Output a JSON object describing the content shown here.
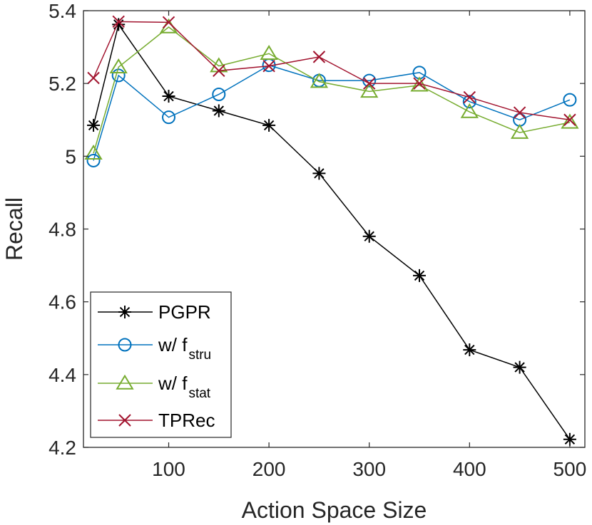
{
  "chart_data": {
    "type": "line",
    "title": "",
    "xlabel": "Action Space Size",
    "ylabel": "Recall",
    "xlim": [
      15,
      515
    ],
    "ylim": [
      4.2,
      5.4
    ],
    "xticks": [
      100,
      200,
      300,
      400,
      500
    ],
    "xtick_labels": [
      "100",
      "200",
      "300",
      "400",
      "500"
    ],
    "yticks": [
      4.2,
      4.4,
      4.6,
      4.8,
      5.0,
      5.2,
      5.4
    ],
    "ytick_labels": [
      "4.2",
      "4.4",
      "4.6",
      "4.8",
      "5",
      "5.2",
      "5.4"
    ],
    "grid": false,
    "legend_position": "bottom-left",
    "series": [
      {
        "name": "PGPR",
        "legend_main": "PGPR",
        "legend_sub": "",
        "color": "#000000",
        "marker": "asterisk",
        "x": [
          25,
          50,
          100,
          150,
          200,
          250,
          300,
          350,
          400,
          450,
          500
        ],
        "values": [
          5.085,
          5.362,
          5.165,
          5.125,
          5.085,
          4.953,
          4.78,
          4.672,
          4.468,
          4.42,
          4.222
        ]
      },
      {
        "name": "w/ f_stru",
        "legend_main": "w/ f",
        "legend_sub": "stru",
        "color": "#0072BD",
        "marker": "circle",
        "x": [
          25,
          50,
          100,
          150,
          200,
          250,
          300,
          350,
          400,
          450,
          500
        ],
        "values": [
          4.988,
          5.222,
          5.107,
          5.17,
          5.25,
          5.208,
          5.208,
          5.23,
          5.15,
          5.1,
          5.155
        ]
      },
      {
        "name": "w/ f_stat",
        "legend_main": "w/ f",
        "legend_sub": "stat",
        "color": "#77AC30",
        "marker": "triangle",
        "x": [
          25,
          50,
          100,
          150,
          200,
          250,
          300,
          350,
          400,
          450,
          500
        ],
        "values": [
          5.008,
          5.245,
          5.355,
          5.248,
          5.282,
          5.205,
          5.178,
          5.195,
          5.122,
          5.065,
          5.093
        ]
      },
      {
        "name": "TPRec",
        "legend_main": "TPRec",
        "legend_sub": "",
        "color": "#A2142F",
        "marker": "x",
        "x": [
          25,
          50,
          100,
          150,
          200,
          250,
          300,
          350,
          400,
          450,
          500
        ],
        "values": [
          5.215,
          5.37,
          5.368,
          5.235,
          5.248,
          5.273,
          5.2,
          5.2,
          5.162,
          5.12,
          5.1
        ]
      }
    ]
  }
}
